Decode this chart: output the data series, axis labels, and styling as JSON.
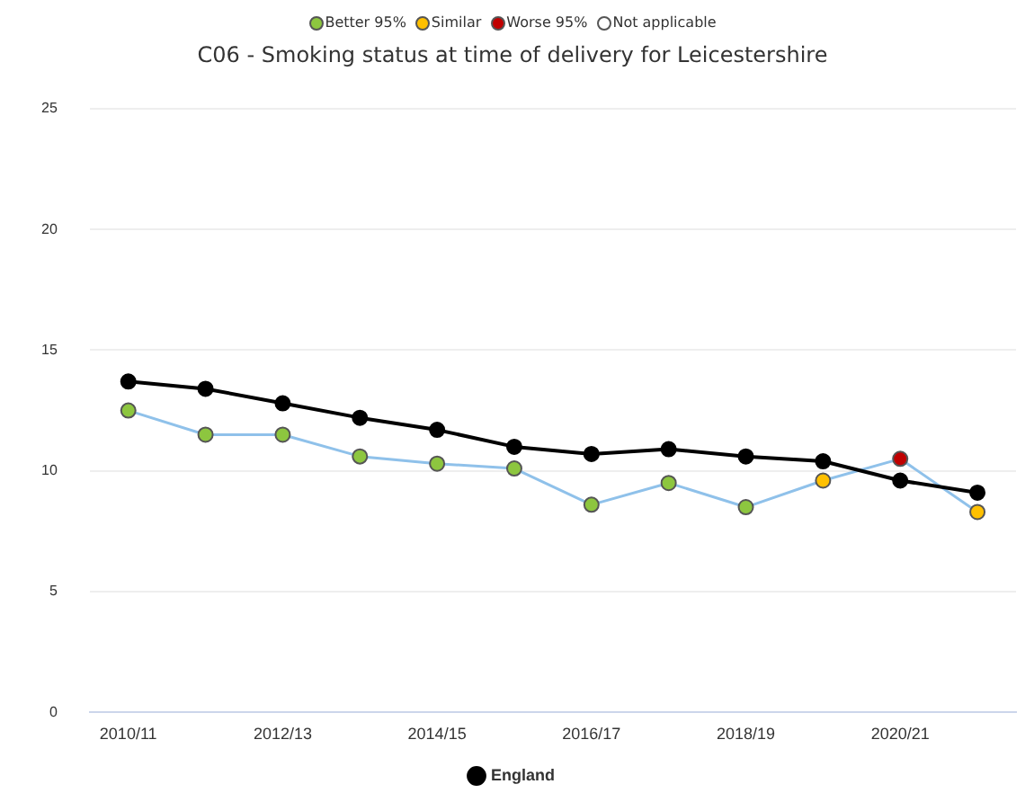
{
  "chart_data": {
    "type": "line",
    "title": "C06 - Smoking status at time of delivery for Leicestershire",
    "categories": [
      "2010/11",
      null,
      "2012/13",
      null,
      "2014/15",
      null,
      "2016/17",
      null,
      "2018/19",
      null,
      "2020/21",
      null
    ],
    "series": [
      {
        "color": "#8fc1ea",
        "colors": [
          "#8dc63f",
          "#8dc63f",
          "#8dc63f",
          "#8dc63f",
          "#8dc63f",
          "#8dc63f",
          "#8dc63f",
          "#8dc63f",
          "#8dc63f",
          "#ffc000",
          "#c00000",
          "#ffc000"
        ],
        "values": [
          12.5,
          11.5,
          11.5,
          10.6,
          10.3,
          10.1,
          8.6,
          9.5,
          8.5,
          9.6,
          10.5,
          8.3
        ]
      },
      {
        "name": "England",
        "color": "#000000",
        "values": [
          13.7,
          13.4,
          12.8,
          12.2,
          11.7,
          11.0,
          10.7,
          10.9,
          10.6,
          10.4,
          9.6,
          9.1
        ]
      }
    ],
    "ylim": [
      0,
      25
    ],
    "yticks": [
      0,
      5,
      10,
      15,
      20,
      25
    ],
    "grid": "y",
    "legend": "bottom",
    "marker": "circle",
    "annotations": [
      "Better 95%",
      "Similar",
      "Worse 95%",
      "Not applicable"
    ]
  }
}
